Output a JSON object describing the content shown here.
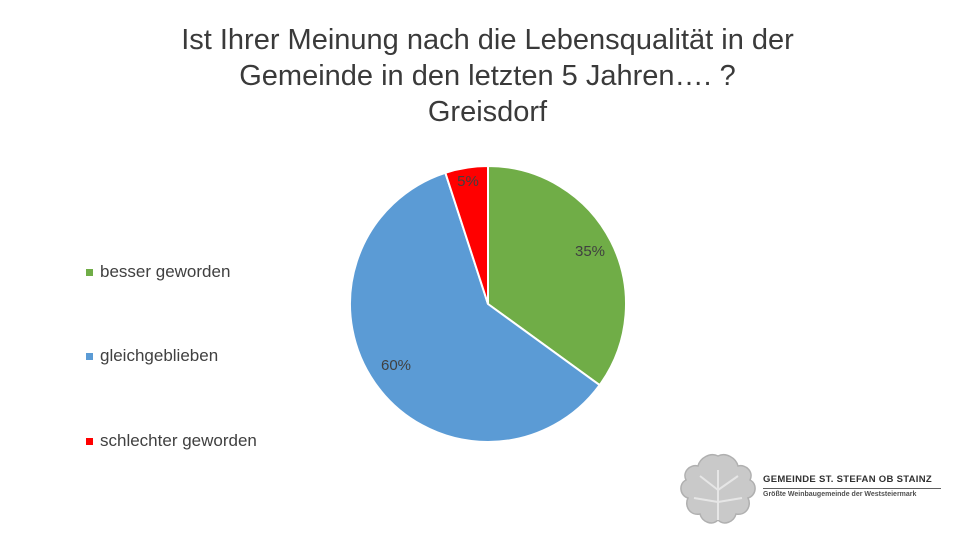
{
  "title_lines": [
    "Ist Ihrer Meinung nach die Lebensqualität in der",
    "Gemeinde in den letzten 5 Jahren…. ?",
    "Greisdorf"
  ],
  "chart_data": {
    "type": "pie",
    "title": "Ist Ihrer Meinung nach die Lebensqualität in der Gemeinde in den letzten 5 Jahren…. ? Greisdorf",
    "legend_position": "left",
    "slices": [
      {
        "name": "besser geworden",
        "value": 35,
        "label": "35%",
        "color": "#70ad47"
      },
      {
        "name": "gleichgeblieben",
        "value": 60,
        "label": "60%",
        "color": "#5b9bd5"
      },
      {
        "name": "schlechter geworden",
        "value": 5,
        "label": "5%",
        "color": "#ff0000"
      }
    ]
  },
  "logo": {
    "line1": "GEMEINDE  ST. STEFAN OB STAINZ",
    "line2": "Größte Weinbaugemeinde der Weststeiermark",
    "icon": "grape-leaf-icon"
  }
}
